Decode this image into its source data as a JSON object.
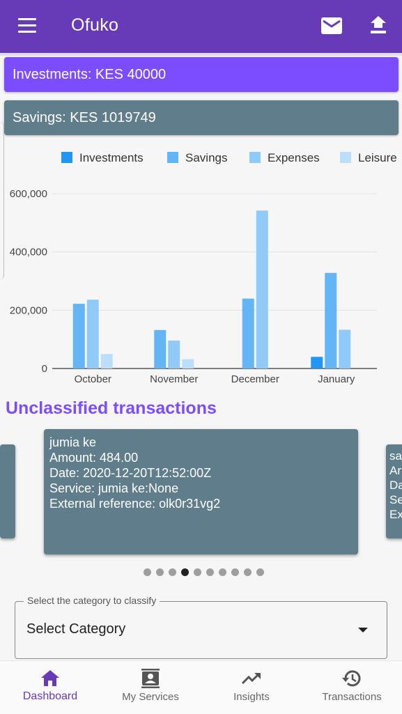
{
  "appbar": {
    "title": "Ofuko",
    "menu_icon": "menu-icon",
    "mail_icon": "mail-icon",
    "upload_icon": "upload-icon"
  },
  "summaries": {
    "investments": "Investments: KES 40000",
    "savings": "Savings: KES 1019749"
  },
  "colors": {
    "primary": "#673ab7",
    "accent": "#7c4dff",
    "card": "#607d8b"
  },
  "chart_data": {
    "type": "bar",
    "categories": [
      "October",
      "November",
      "December",
      "January"
    ],
    "series": [
      {
        "name": "Investments",
        "color": "#2196f3",
        "values": [
          0,
          0,
          0,
          40000
        ]
      },
      {
        "name": "Savings",
        "color": "#64b5f6",
        "values": [
          222000,
          132000,
          240000,
          328000
        ]
      },
      {
        "name": "Expenses",
        "color": "#90caf9",
        "values": [
          236000,
          96000,
          542000,
          133000
        ]
      },
      {
        "name": "Leisure",
        "color": "#bbdefb",
        "values": [
          50000,
          32000,
          0,
          0
        ]
      }
    ],
    "y_ticks": [
      "0",
      "200,000",
      "400,000",
      "600,000"
    ],
    "y_tick_values": [
      0,
      200000,
      400000,
      600000
    ],
    "ylim": [
      0,
      600000
    ],
    "grid": true,
    "legend_position": "top"
  },
  "section": {
    "title": "Unclassified transactions"
  },
  "transaction": {
    "name": "jumia ke",
    "amount": "Amount: 484.00",
    "date": "Date: 2020-12-20T12:52:00Z",
    "service": "Service: jumia ke:None",
    "reference": "External reference: olk0r31vg2"
  },
  "next_card_preview": [
    "sa",
    "Ar",
    "Da",
    "Se",
    "Ex"
  ],
  "pager": {
    "count": 10,
    "active_index": 3
  },
  "category_select": {
    "label": "Select the category to classify",
    "value": "Select Category"
  },
  "bottom_nav": [
    {
      "label": "Dashboard",
      "icon": "home-icon",
      "active": true
    },
    {
      "label": "My Services",
      "icon": "contact-card-icon",
      "active": false
    },
    {
      "label": "Insights",
      "icon": "trending-up-icon",
      "active": false
    },
    {
      "label": "Transactions",
      "icon": "history-icon",
      "active": false
    }
  ]
}
